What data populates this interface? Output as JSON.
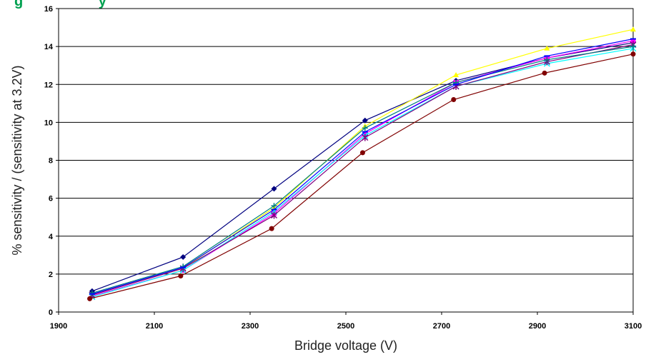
{
  "chart_data": {
    "type": "line",
    "title_fragment": "g                   y",
    "xlabel": "Bridge voltage (V)",
    "ylabel": "% sensitivity / (sensitivity at 3.2V)",
    "xlim": [
      1900,
      3100
    ],
    "ylim": [
      0,
      16
    ],
    "xticks": [
      "1900",
      "2100",
      "2300",
      "2500",
      "2700",
      "2900",
      "3100"
    ],
    "yticks": [
      "0",
      "2",
      "4",
      "6",
      "8",
      "10",
      "12",
      "14",
      "16"
    ],
    "grid": "horizontal",
    "legend": "none",
    "series": [
      {
        "color": "#000080",
        "marker": "diamond",
        "points": [
          [
            1970,
            1.1
          ],
          [
            2160,
            2.9
          ],
          [
            2350,
            6.5
          ],
          [
            2540,
            10.1
          ],
          [
            2730,
            12.2
          ],
          [
            2920,
            13.4
          ],
          [
            3100,
            14.2
          ]
        ]
      },
      {
        "color": "#ff00ff",
        "marker": "square",
        "points": [
          [
            1970,
            0.85
          ],
          [
            2160,
            2.2
          ],
          [
            2350,
            5.2
          ],
          [
            2540,
            9.4
          ],
          [
            2730,
            12.1
          ],
          [
            2920,
            13.4
          ],
          [
            3100,
            14.3
          ]
        ]
      },
      {
        "color": "#ffff00",
        "marker": "triangle",
        "points": [
          [
            1970,
            0.9
          ],
          [
            2160,
            2.3
          ],
          [
            2350,
            5.5
          ],
          [
            2540,
            9.8
          ],
          [
            2730,
            12.5
          ],
          [
            2920,
            13.9
          ],
          [
            3100,
            14.9
          ]
        ]
      },
      {
        "color": "#00ffff",
        "marker": "x",
        "points": [
          [
            1970,
            0.8
          ],
          [
            2160,
            2.2
          ],
          [
            2350,
            5.3
          ],
          [
            2540,
            9.3
          ],
          [
            2730,
            11.9
          ],
          [
            2920,
            13.1
          ],
          [
            3100,
            13.9
          ]
        ]
      },
      {
        "color": "#800080",
        "marker": "star",
        "points": [
          [
            1970,
            0.9
          ],
          [
            2160,
            2.3
          ],
          [
            2350,
            5.1
          ],
          [
            2540,
            9.2
          ],
          [
            2730,
            11.9
          ],
          [
            2920,
            13.2
          ],
          [
            3100,
            14.1
          ]
        ]
      },
      {
        "color": "#800000",
        "marker": "circle",
        "points": [
          [
            1965,
            0.7
          ],
          [
            2155,
            1.9
          ],
          [
            2345,
            4.4
          ],
          [
            2535,
            8.4
          ],
          [
            2725,
            11.2
          ],
          [
            2915,
            12.6
          ],
          [
            3100,
            13.6
          ]
        ]
      },
      {
        "color": "#008080",
        "marker": "plus",
        "points": [
          [
            1970,
            1.0
          ],
          [
            2160,
            2.4
          ],
          [
            2350,
            5.6
          ],
          [
            2540,
            9.7
          ],
          [
            2730,
            12.1
          ],
          [
            2920,
            13.3
          ],
          [
            3100,
            14.0
          ]
        ]
      },
      {
        "color": "#0000ff",
        "marker": "dash",
        "points": [
          [
            1970,
            0.95
          ],
          [
            2160,
            2.35
          ],
          [
            2350,
            5.4
          ],
          [
            2540,
            9.5
          ],
          [
            2730,
            12.0
          ],
          [
            2920,
            13.5
          ],
          [
            3100,
            14.4
          ]
        ]
      }
    ]
  }
}
